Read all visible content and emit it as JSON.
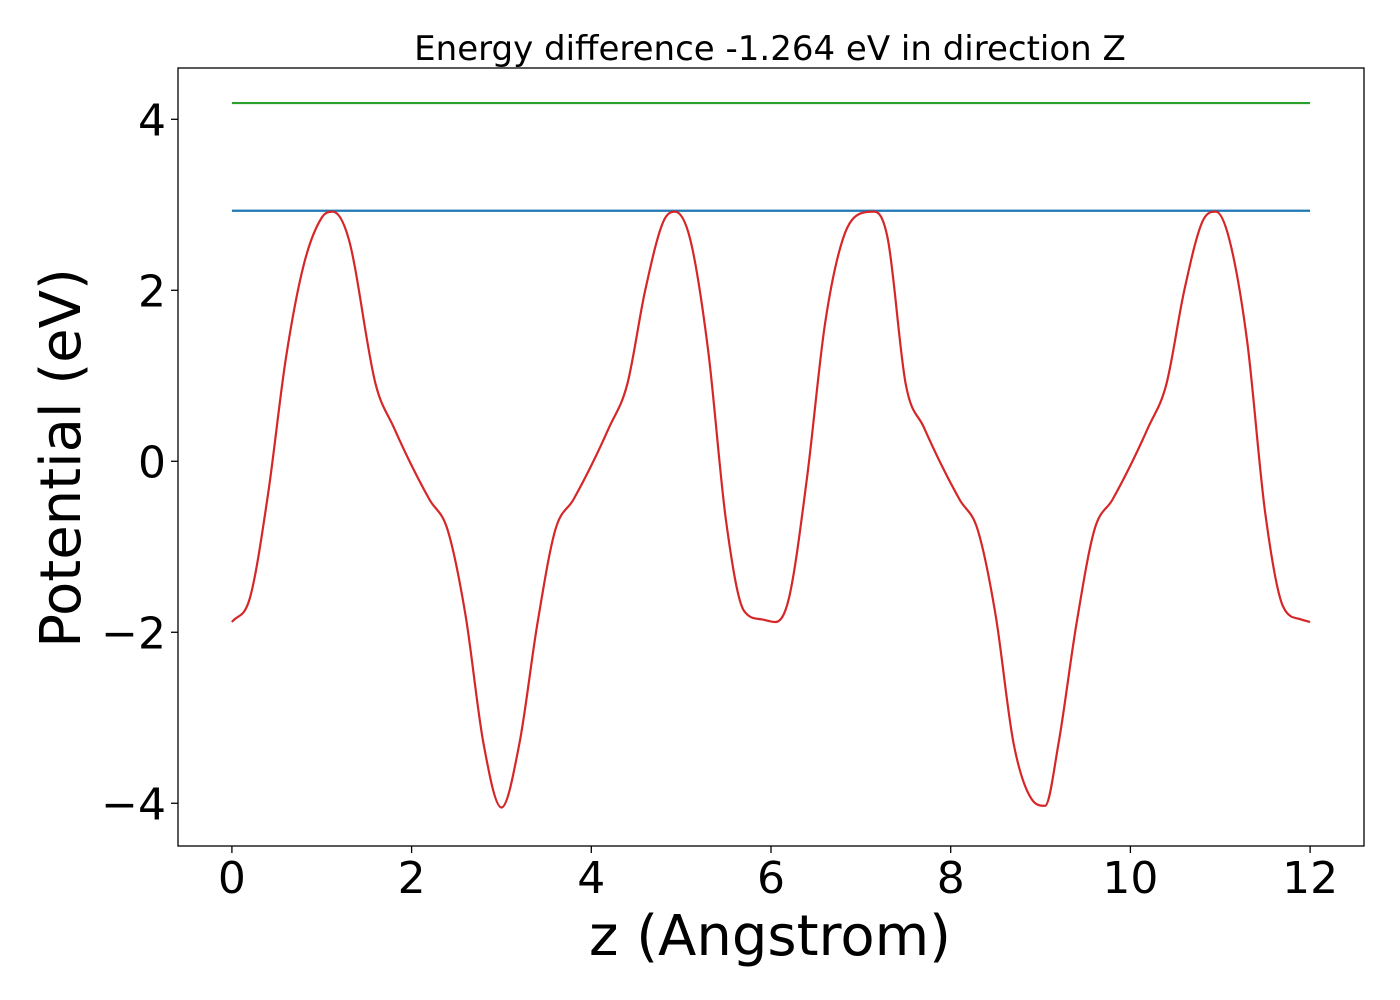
{
  "chart_data": {
    "type": "line",
    "title": "Energy difference -1.264 eV in direction Z",
    "xlabel": "z (Angstrom)",
    "ylabel": "Potential (eV)",
    "xlim": [
      -0.6,
      12.6
    ],
    "ylim": [
      -4.5,
      4.6
    ],
    "xticks": [
      0,
      2,
      4,
      6,
      8,
      10,
      12
    ],
    "xtick_labels": [
      "0",
      "2",
      "4",
      "6",
      "8",
      "10",
      "12"
    ],
    "yticks": [
      -4,
      -2,
      0,
      2,
      4
    ],
    "ytick_labels": [
      "−4",
      "−2",
      "0",
      "2",
      "4"
    ],
    "grid": false,
    "legend": "none",
    "series": [
      {
        "color": "#2ca02c",
        "x": [
          0,
          12
        ],
        "y": [
          4.19,
          4.19
        ]
      },
      {
        "color": "#1f77b4",
        "x": [
          0,
          12
        ],
        "y": [
          2.93,
          2.93
        ]
      },
      {
        "color": "#d62728",
        "x": [
          0,
          0.2,
          0.4,
          0.6,
          0.8,
          1.0,
          1.12,
          1.3,
          1.6,
          1.8,
          2.0,
          2.2,
          2.4,
          2.6,
          2.8,
          3.0,
          3.2,
          3.4,
          3.6,
          3.8,
          4.0,
          4.2,
          4.4,
          4.6,
          4.8,
          4.93,
          5.1,
          5.3,
          5.5,
          5.7,
          5.9,
          6.05,
          6.2,
          6.4,
          6.6,
          6.8,
          7.0,
          7.15,
          7.3,
          7.5,
          7.7,
          7.9,
          8.1,
          8.3,
          8.5,
          8.7,
          8.9,
          9.05,
          9.2,
          9.4,
          9.6,
          9.8,
          10.0,
          10.2,
          10.4,
          10.6,
          10.8,
          10.95,
          11.1,
          11.3,
          11.5,
          11.7,
          11.9,
          12.0
        ],
        "y": [
          -1.88,
          -1.6,
          -0.4,
          1.2,
          2.3,
          2.85,
          2.92,
          2.6,
          0.9,
          0.4,
          -0.05,
          -0.45,
          -0.8,
          -1.8,
          -3.3,
          -4.05,
          -3.3,
          -1.9,
          -0.8,
          -0.45,
          -0.05,
          0.4,
          0.9,
          2.0,
          2.8,
          2.92,
          2.6,
          1.3,
          -0.7,
          -1.75,
          -1.85,
          -1.88,
          -1.6,
          -0.2,
          1.6,
          2.6,
          2.9,
          2.92,
          2.6,
          0.9,
          0.4,
          -0.05,
          -0.45,
          -0.8,
          -1.8,
          -3.3,
          -3.95,
          -4.03,
          -3.3,
          -1.9,
          -0.8,
          -0.45,
          -0.05,
          0.4,
          0.9,
          2.0,
          2.8,
          2.92,
          2.6,
          1.4,
          -0.6,
          -1.7,
          -1.85,
          -1.88
        ]
      }
    ]
  }
}
